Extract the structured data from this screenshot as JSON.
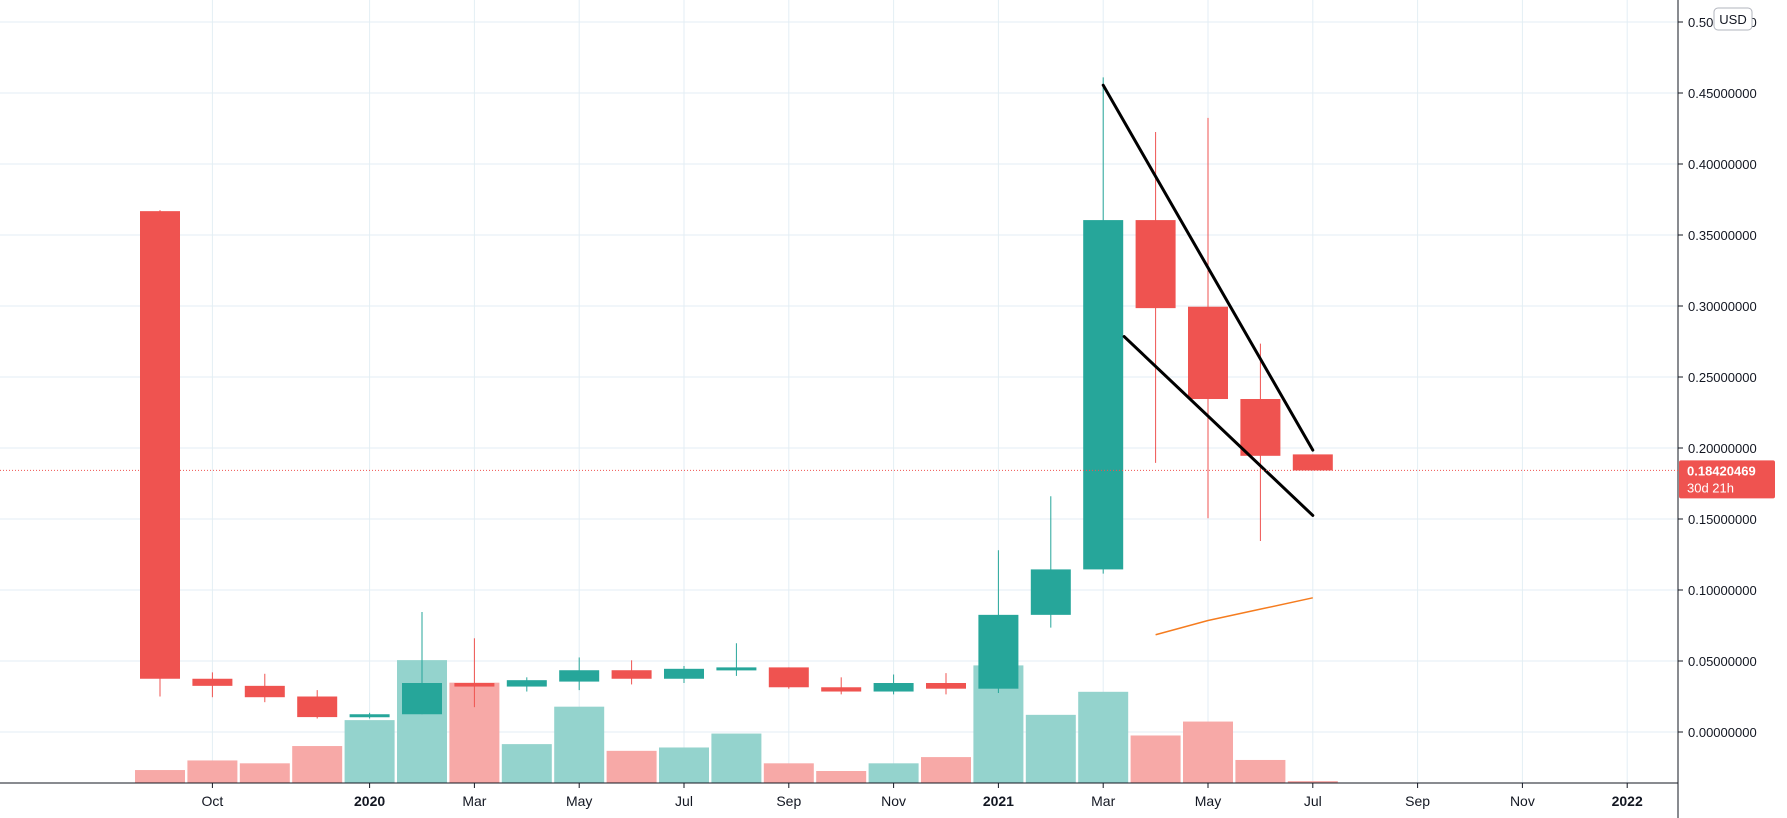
{
  "chart_data": {
    "type": "candlestick",
    "currency": "USD",
    "price_axis": {
      "min": -0.035,
      "max": 0.5,
      "ticks": [
        0.0,
        0.05,
        0.1,
        0.15,
        0.2,
        0.25,
        0.3,
        0.35,
        0.4,
        0.45,
        0.5
      ],
      "tick_labels": [
        "0.00000000",
        "0.05000000",
        "0.10000000",
        "0.15000000",
        "0.20000000",
        "0.25000000",
        "0.30000000",
        "0.35000000",
        "0.40000000",
        "0.45000000",
        "0.50000000"
      ]
    },
    "time_axis": {
      "labels": [
        {
          "text": "Oct",
          "index": 1,
          "bold": false
        },
        {
          "text": "2020",
          "index": 4,
          "bold": true
        },
        {
          "text": "Mar",
          "index": 6,
          "bold": false
        },
        {
          "text": "May",
          "index": 8,
          "bold": false
        },
        {
          "text": "Jul",
          "index": 10,
          "bold": false
        },
        {
          "text": "Sep",
          "index": 12,
          "bold": false
        },
        {
          "text": "Nov",
          "index": 14,
          "bold": false
        },
        {
          "text": "2021",
          "index": 16,
          "bold": true
        },
        {
          "text": "Mar",
          "index": 18,
          "bold": false
        },
        {
          "text": "May",
          "index": 20,
          "bold": false
        },
        {
          "text": "Jul",
          "index": 22,
          "bold": false
        },
        {
          "text": "Sep",
          "index": 24,
          "bold": false
        },
        {
          "text": "Nov",
          "index": 26,
          "bold": false
        },
        {
          "text": "2022",
          "index": 28,
          "bold": true
        }
      ]
    },
    "candles": [
      {
        "open": 0.3668,
        "high": 0.3675,
        "low": 0.025,
        "close": 0.0375
      },
      {
        "open": 0.0375,
        "high": 0.042,
        "low": 0.0245,
        "close": 0.0325
      },
      {
        "open": 0.0325,
        "high": 0.041,
        "low": 0.021,
        "close": 0.0245
      },
      {
        "open": 0.025,
        "high": 0.0295,
        "low": 0.0095,
        "close": 0.0105
      },
      {
        "open": 0.0105,
        "high": 0.0135,
        "low": 0.0095,
        "close": 0.0125
      },
      {
        "open": 0.0125,
        "high": 0.0845,
        "low": 0.0125,
        "close": 0.0345
      },
      {
        "open": 0.0345,
        "high": 0.066,
        "low": 0.0175,
        "close": 0.032
      },
      {
        "open": 0.032,
        "high": 0.0385,
        "low": 0.0285,
        "close": 0.0365
      },
      {
        "open": 0.0355,
        "high": 0.0525,
        "low": 0.0295,
        "close": 0.0435
      },
      {
        "open": 0.0435,
        "high": 0.0505,
        "low": 0.0335,
        "close": 0.0375
      },
      {
        "open": 0.0375,
        "high": 0.0465,
        "low": 0.0345,
        "close": 0.0445
      },
      {
        "open": 0.0445,
        "high": 0.0625,
        "low": 0.0395,
        "close": 0.0455
      },
      {
        "open": 0.0455,
        "high": 0.0455,
        "low": 0.0305,
        "close": 0.0315
      },
      {
        "open": 0.0315,
        "high": 0.0385,
        "low": 0.0265,
        "close": 0.0285
      },
      {
        "open": 0.0285,
        "high": 0.0405,
        "low": 0.0265,
        "close": 0.0345
      },
      {
        "open": 0.0345,
        "high": 0.0415,
        "low": 0.0265,
        "close": 0.0305
      },
      {
        "open": 0.0305,
        "high": 0.128,
        "low": 0.0275,
        "close": 0.0825
      },
      {
        "open": 0.0825,
        "high": 0.166,
        "low": 0.0735,
        "close": 0.1145
      },
      {
        "open": 0.1145,
        "high": 0.461,
        "low": 0.1115,
        "close": 0.3605
      },
      {
        "open": 0.3605,
        "high": 0.4225,
        "low": 0.1895,
        "close": 0.2985
      },
      {
        "open": 0.2995,
        "high": 0.4325,
        "low": 0.1505,
        "close": 0.2345
      },
      {
        "open": 0.2345,
        "high": 0.2735,
        "low": 0.1345,
        "close": 0.1945
      },
      {
        "open": 0.1955,
        "high": 0.1955,
        "low": 0.1842,
        "close": 0.1842
      }
    ],
    "volume": [
      0.027,
      0.047,
      0.041,
      0.077,
      0.131,
      0.256,
      0.209,
      0.081,
      0.159,
      0.067,
      0.074,
      0.103,
      0.041,
      0.025,
      0.041,
      0.054,
      0.245,
      0.142,
      0.19,
      0.099,
      0.128,
      0.048,
      0.004
    ],
    "moving_average": [
      {
        "index": 19,
        "value": 0.0685
      },
      {
        "index": 20,
        "value": 0.0785
      },
      {
        "index": 21,
        "value": 0.0865
      },
      {
        "index": 22,
        "value": 0.0945
      }
    ],
    "trendlines": [
      {
        "from": {
          "index": 18,
          "value": 0.4555
        },
        "to": {
          "index": 22,
          "value": 0.1985
        }
      },
      {
        "from": {
          "index": 18.4,
          "value": 0.2785
        },
        "to": {
          "index": 22,
          "value": 0.1525
        }
      }
    ],
    "last_price": {
      "value": 0.18420469,
      "label": "0.18420469",
      "countdown": "30d 21h"
    },
    "colors": {
      "up": "#26a69a",
      "down": "#ef5350",
      "volume_up": "#94d3cd",
      "volume_down": "#f7a9a7",
      "grid": "#e3eef4",
      "axis": "#131722",
      "moving_average": "#f57c1f",
      "trendline": "#000000",
      "last_price": "#ef5350"
    }
  }
}
